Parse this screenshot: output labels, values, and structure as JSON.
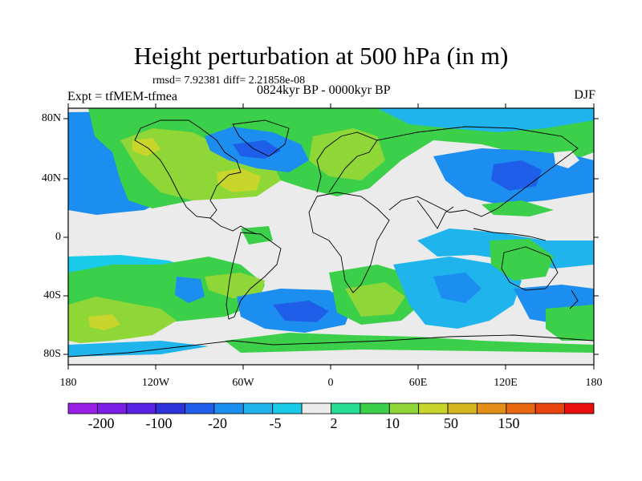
{
  "title": "Height perturbation at 500 hPa (in m)",
  "stats": "rmsd= 7.92381 diff= 2.21858e-08",
  "experiment": "Expt = tfMEM-tfmea",
  "period": "0824kyr BP - 0000kyr BP",
  "season": "DJF",
  "lat_labels": [
    "80N",
    "40N",
    "0",
    "40S",
    "80S"
  ],
  "lon_labels": [
    "180",
    "120W",
    "60W",
    "0",
    "60E",
    "120E",
    "180"
  ],
  "colorbar": {
    "colors": [
      "#9a1fe6",
      "#7a1ee8",
      "#5a22e4",
      "#2f33dc",
      "#1f5ee8",
      "#1c8ef0",
      "#20b4ec",
      "#19cbe8",
      "#ebebeb",
      "#25dc95",
      "#3cd04a",
      "#8fd637",
      "#c8d52b",
      "#d6b41f",
      "#e48f18",
      "#e86812",
      "#e8420d",
      "#e8100c"
    ],
    "tick_labels": [
      "-200",
      "-100",
      "-20",
      "-5",
      "2",
      "10",
      "50",
      "150"
    ]
  }
}
